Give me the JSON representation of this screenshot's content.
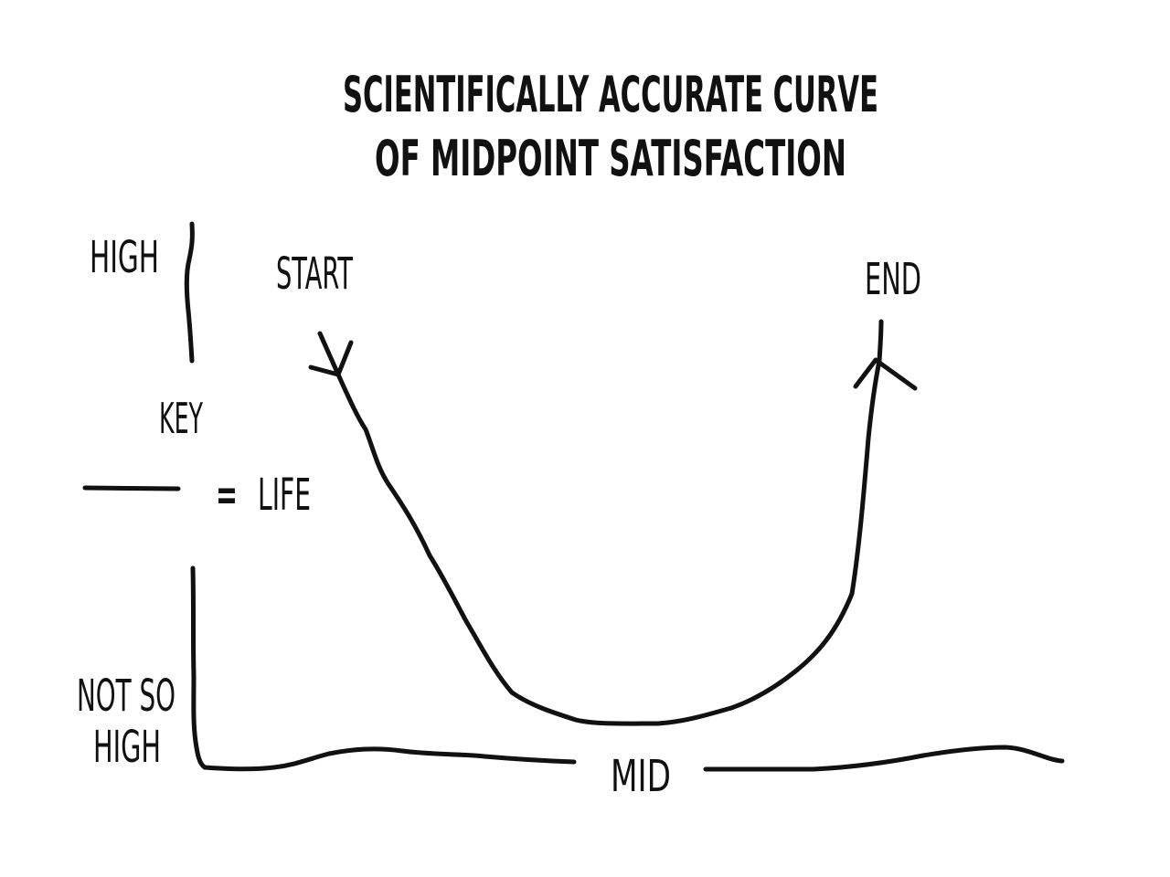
{
  "title": {
    "line1": "SCIENTIFICALLY ACCURATE CURVE",
    "line2": "OF MIDPOINT SATISFACTION"
  },
  "axis": {
    "high_label": "HIGH",
    "low_label_line1": "NOT SO",
    "low_label_line2": "HIGH",
    "mid_label": "MID"
  },
  "legend": {
    "heading": "KEY",
    "equals": "=",
    "item_label": "LIFE"
  },
  "curve": {
    "start_label": "START",
    "end_label": "END"
  },
  "colors": {
    "ink": "#111111",
    "background": "#ffffff"
  }
}
